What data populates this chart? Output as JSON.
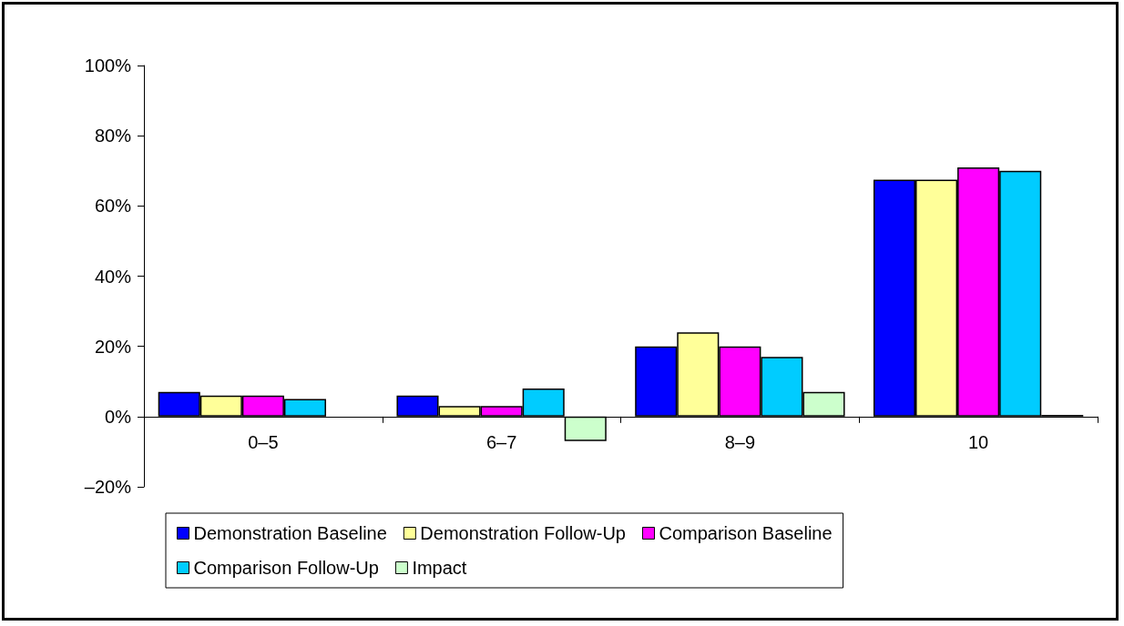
{
  "chart_data": {
    "type": "bar",
    "categories": [
      "0–5",
      "6–7",
      "8–9",
      "10"
    ],
    "series": [
      {
        "name": "Demonstration Baseline",
        "color": "#0000ff",
        "values": [
          7,
          6,
          20,
          67.5
        ]
      },
      {
        "name": "Demonstration Follow-Up",
        "color": "#ffff99",
        "values": [
          6,
          3,
          24,
          67.5
        ]
      },
      {
        "name": "Comparison Baseline",
        "color": "#ff00ff",
        "values": [
          6,
          3,
          20,
          71
        ]
      },
      {
        "name": "Comparison Follow-Up",
        "color": "#00ccff",
        "values": [
          5,
          8,
          17,
          70
        ]
      },
      {
        "name": "Impact",
        "color": "#ccffcc",
        "values": [
          null,
          -7,
          7,
          0.5
        ]
      }
    ],
    "ylim": [
      -20,
      100
    ],
    "yticks": [
      {
        "value": -20,
        "label": "–20%"
      },
      {
        "value": 0,
        "label": "0%"
      },
      {
        "value": 20,
        "label": "20%"
      },
      {
        "value": 40,
        "label": "40%"
      },
      {
        "value": 60,
        "label": "60%"
      },
      {
        "value": 80,
        "label": "80%"
      },
      {
        "value": 100,
        "label": "100%"
      }
    ],
    "legend": "bottom"
  }
}
